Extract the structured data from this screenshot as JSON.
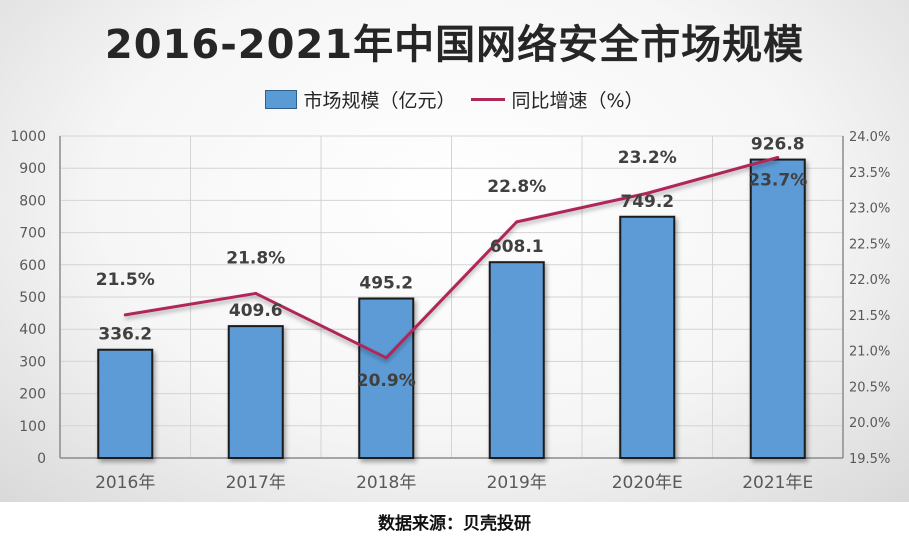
{
  "chart_data": {
    "type": "bar",
    "title": "2016-2021年中国网络安全市场规模",
    "categories": [
      "2016年",
      "2017年",
      "2018年",
      "2019年",
      "2020年E",
      "2021年E"
    ],
    "series": [
      {
        "name": "市场规模（亿元）",
        "type": "bar",
        "axis": "left",
        "values": [
          336.2,
          409.6,
          495.2,
          608.1,
          749.2,
          926.8
        ],
        "labels": [
          "336.2",
          "409.6",
          "495.2",
          "608.1",
          "749.2",
          "926.8"
        ],
        "color": "#5b9bd5"
      },
      {
        "name": "同比增速（%）",
        "type": "line",
        "axis": "right",
        "values": [
          21.5,
          21.8,
          20.9,
          22.8,
          23.2,
          23.7
        ],
        "labels": [
          "21.5%",
          "21.8%",
          "20.9%",
          "22.8%",
          "23.2%",
          "23.7%"
        ],
        "color": "#b0285a"
      }
    ],
    "ylim": [
      0,
      1000
    ],
    "y_ticks": [
      "0",
      "100",
      "200",
      "300",
      "400",
      "500",
      "600",
      "700",
      "800",
      "900",
      "1000"
    ],
    "y2lim": [
      19.5,
      24.0
    ],
    "y2_ticks": [
      "19.5%",
      "20.0%",
      "20.5%",
      "21.0%",
      "21.5%",
      "22.0%",
      "22.5%",
      "23.0%",
      "23.5%",
      "24.0%"
    ],
    "grid": true,
    "legend_position": "top"
  },
  "source": "数据来源：贝壳投研"
}
